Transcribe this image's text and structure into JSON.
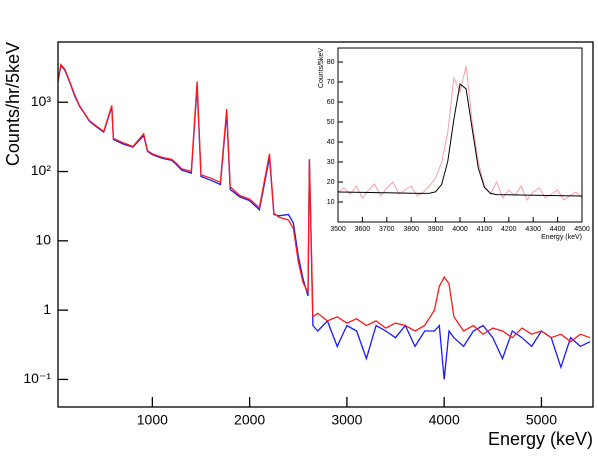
{
  "chart_data": [
    {
      "type": "line",
      "ylog": true,
      "xlabel": "Energy (keV)",
      "ylabel": "Counts/hr/5keV",
      "xlim": [
        30,
        5530
      ],
      "ylim": [
        0.04,
        7400
      ],
      "xticks": [
        1000,
        2000,
        3000,
        4000,
        5000
      ],
      "yticks": [
        {
          "value": 0.1,
          "label": "10⁻¹"
        },
        1,
        10,
        {
          "value": 100,
          "label": "10²"
        },
        {
          "value": 1000,
          "label": "10³"
        }
      ],
      "x": [
        30,
        60,
        100,
        150,
        200,
        250,
        300,
        350,
        400,
        500,
        583,
        600,
        700,
        800,
        911,
        950,
        1000,
        1100,
        1200,
        1250,
        1300,
        1400,
        1460,
        1500,
        1600,
        1700,
        1764,
        1800,
        1900,
        2000,
        2100,
        2204,
        2250,
        2300,
        2400,
        2450,
        2500,
        2550,
        2600,
        2614,
        2650,
        2700,
        2800,
        2900,
        3000,
        3100,
        3200,
        3300,
        3400,
        3500,
        3600,
        3700,
        3800,
        3900,
        3950,
        4000,
        4050,
        4100,
        4200,
        4300,
        4400,
        4500,
        4600,
        4700,
        4800,
        4900,
        5000,
        5100,
        5200,
        5300,
        5400,
        5500
      ],
      "series": [
        {
          "color": "#1a1aff",
          "values": [
            2000,
            3400,
            2900,
            1950,
            1250,
            880,
            690,
            540,
            470,
            370,
            850,
            290,
            250,
            225,
            330,
            195,
            175,
            155,
            145,
            125,
            105,
            95,
            1700,
            85,
            75,
            65,
            700,
            55,
            43,
            38,
            28,
            160,
            24,
            23,
            24,
            18,
            6,
            2.8,
            1.6,
            150,
            0.6,
            0.5,
            0.7,
            0.3,
            0.6,
            0.5,
            0.2,
            0.6,
            0.5,
            0.4,
            0.6,
            0.3,
            0.5,
            0.5,
            0.6,
            0.1,
            0.5,
            0.4,
            0.3,
            0.5,
            0.6,
            0.4,
            0.2,
            0.5,
            0.4,
            0.3,
            0.5,
            0.4,
            0.15,
            0.4,
            0.3,
            0.35
          ]
        },
        {
          "color": "#ff1a1a",
          "values": [
            2000,
            3500,
            3000,
            2000,
            1300,
            900,
            700,
            550,
            480,
            380,
            900,
            300,
            260,
            230,
            350,
            200,
            180,
            160,
            150,
            130,
            110,
            100,
            2000,
            90,
            80,
            70,
            800,
            60,
            45,
            40,
            30,
            180,
            25,
            22,
            20,
            15,
            5,
            2.5,
            1.8,
            150,
            0.8,
            0.9,
            0.7,
            0.8,
            0.65,
            0.75,
            0.6,
            0.7,
            0.55,
            0.65,
            0.6,
            0.5,
            0.6,
            1.0,
            2.2,
            3.0,
            2.4,
            0.8,
            0.5,
            0.6,
            0.45,
            0.55,
            0.5,
            0.4,
            0.55,
            0.45,
            0.5,
            0.4,
            0.45,
            0.35,
            0.45,
            0.4
          ]
        }
      ]
    },
    {
      "type": "line",
      "ylog": false,
      "xlabel": "Energy (keV)",
      "ylabel": "Counts/5keV",
      "xlim": [
        3500,
        4500
      ],
      "ylim": [
        0,
        87
      ],
      "xticks": [
        3500,
        3600,
        3700,
        3800,
        3900,
        4000,
        4100,
        4200,
        4300,
        4400,
        4500
      ],
      "yticks": [
        10,
        20,
        30,
        40,
        50,
        60,
        70,
        80
      ],
      "series": [
        {
          "color": "#f4a0a8",
          "x": [
            3500,
            3525,
            3550,
            3575,
            3600,
            3625,
            3650,
            3675,
            3700,
            3725,
            3750,
            3775,
            3800,
            3825,
            3850,
            3875,
            3900,
            3925,
            3950,
            3975,
            4000,
            4025,
            4050,
            4075,
            4100,
            4125,
            4150,
            4175,
            4200,
            4225,
            4250,
            4275,
            4300,
            4325,
            4350,
            4375,
            4400,
            4425,
            4450,
            4475,
            4500
          ],
          "values": [
            15,
            17,
            14,
            18,
            12,
            16,
            19,
            13,
            17,
            20,
            14,
            16,
            18,
            13,
            15,
            18,
            22,
            30,
            45,
            72,
            65,
            78,
            50,
            30,
            18,
            14,
            20,
            12,
            16,
            13,
            18,
            11,
            15,
            17,
            12,
            14,
            16,
            11,
            13,
            15,
            12
          ]
        },
        {
          "color": "#000000",
          "x": [
            3500,
            3600,
            3700,
            3800,
            3850,
            3875,
            3900,
            3925,
            3950,
            3975,
            4000,
            4025,
            4050,
            4075,
            4100,
            4125,
            4150,
            4200,
            4300,
            4400,
            4500
          ],
          "values": [
            15,
            14.8,
            14.6,
            14.4,
            14.3,
            14.4,
            15.1,
            18.8,
            30.4,
            51.4,
            69,
            66.6,
            46.6,
            27,
            17.3,
            14.3,
            13.7,
            13.6,
            13.4,
            13.2,
            13
          ]
        }
      ]
    }
  ]
}
